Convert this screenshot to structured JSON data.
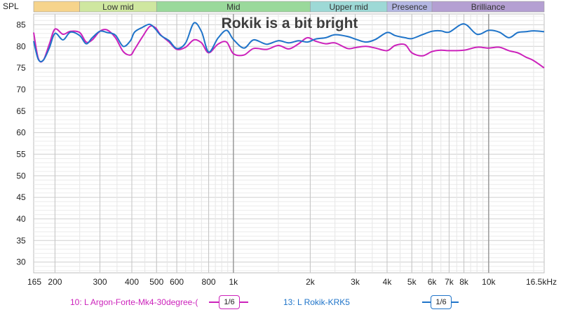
{
  "chart_data": {
    "type": "line",
    "title": "Rokik is a bit bright",
    "ylabel": "SPL",
    "x_scale": "log",
    "xlim": [
      165,
      16500
    ],
    "ylim": [
      27.5,
      87.5
    ],
    "x_ticks": [
      {
        "v": 165,
        "label": "165"
      },
      {
        "v": 200,
        "label": "200"
      },
      {
        "v": 300,
        "label": "300"
      },
      {
        "v": 400,
        "label": "400"
      },
      {
        "v": 500,
        "label": "500"
      },
      {
        "v": 600,
        "label": "600"
      },
      {
        "v": 800,
        "label": "800"
      },
      {
        "v": 1000,
        "label": "1k"
      },
      {
        "v": 2000,
        "label": "2k"
      },
      {
        "v": 3000,
        "label": "3k"
      },
      {
        "v": 4000,
        "label": "4k"
      },
      {
        "v": 5000,
        "label": "5k"
      },
      {
        "v": 6000,
        "label": "6k"
      },
      {
        "v": 7000,
        "label": "7k"
      },
      {
        "v": 8000,
        "label": "8k"
      },
      {
        "v": 10000,
        "label": "10k"
      },
      {
        "v": 16500,
        "label": "16.5kHz"
      }
    ],
    "y_ticks": [
      30,
      35,
      40,
      45,
      50,
      55,
      60,
      65,
      70,
      75,
      80,
      85
    ],
    "bands": [
      {
        "label": "",
        "from": 165,
        "to": 250,
        "color": "#f6d48c"
      },
      {
        "label": "Low mid",
        "from": 250,
        "to": 500,
        "color": "#cfe7a0"
      },
      {
        "label": "Mid",
        "from": 500,
        "to": 2000,
        "color": "#9ad99b"
      },
      {
        "label": "Upper mid",
        "from": 2000,
        "to": 4000,
        "color": "#9dd9d6"
      },
      {
        "label": "Presence",
        "from": 4000,
        "to": 6000,
        "color": "#b3b6e2"
      },
      {
        "label": "Brilliance",
        "from": 6000,
        "to": 16500,
        "color": "#b49fd2"
      }
    ],
    "series": [
      {
        "name": "10: L Argon-Forte-Mk4-30degree-(",
        "color": "#cc22bb",
        "smoothing": "1/6",
        "x": [
          165,
          172,
          180,
          190,
          200,
          215,
          230,
          250,
          265,
          280,
          300,
          320,
          345,
          370,
          395,
          410,
          440,
          470,
          495,
          520,
          560,
          600,
          650,
          700,
          750,
          800,
          870,
          940,
          1000,
          1100,
          1200,
          1350,
          1500,
          1650,
          1800,
          1950,
          2100,
          2300,
          2500,
          2800,
          3000,
          3300,
          3600,
          4000,
          4300,
          4700,
          5000,
          5500,
          6000,
          6500,
          7000,
          8000,
          9000,
          10000,
          11000,
          12000,
          13000,
          14000,
          15000,
          16500
        ],
        "y": [
          83.2,
          77.2,
          76.8,
          80.5,
          84.0,
          82.8,
          83.5,
          83.2,
          81.0,
          81.5,
          83.5,
          83.8,
          82.0,
          78.8,
          78.0,
          79.3,
          82.2,
          84.6,
          84.3,
          82.6,
          81.0,
          79.3,
          79.8,
          81.5,
          80.8,
          78.5,
          80.5,
          81.0,
          78.3,
          78.0,
          79.5,
          79.3,
          80.2,
          79.4,
          80.6,
          82.0,
          81.2,
          80.6,
          80.8,
          79.5,
          79.7,
          80.0,
          79.6,
          79.0,
          80.2,
          80.4,
          78.5,
          77.8,
          78.8,
          79.1,
          79.0,
          79.1,
          79.8,
          79.6,
          79.8,
          79.0,
          78.5,
          77.5,
          76.7,
          75.0
        ]
      },
      {
        "name": "13: L Rokik-KRK5",
        "color": "#1f74c9",
        "smoothing": "1/6",
        "x": [
          165,
          172,
          180,
          190,
          200,
          215,
          230,
          250,
          265,
          280,
          300,
          320,
          345,
          370,
          395,
          410,
          440,
          470,
          495,
          520,
          560,
          600,
          650,
          700,
          750,
          800,
          870,
          940,
          1000,
          1100,
          1200,
          1350,
          1500,
          1650,
          1800,
          1950,
          2100,
          2300,
          2500,
          2800,
          3000,
          3300,
          3600,
          4000,
          4300,
          4700,
          5000,
          5500,
          6000,
          6500,
          7000,
          8000,
          9000,
          10000,
          11000,
          12000,
          13000,
          14000,
          15000,
          16500
        ],
        "y": [
          81.2,
          77.0,
          76.8,
          79.6,
          83.0,
          81.5,
          83.3,
          82.5,
          80.6,
          82.0,
          83.5,
          83.2,
          82.6,
          80.0,
          81.3,
          83.3,
          84.4,
          85.1,
          84.0,
          82.5,
          81.3,
          79.5,
          80.8,
          85.4,
          83.4,
          78.7,
          81.9,
          83.7,
          81.6,
          79.6,
          81.5,
          80.5,
          81.3,
          80.8,
          81.3,
          81.0,
          81.7,
          82.0,
          82.7,
          82.3,
          81.7,
          81.0,
          81.6,
          83.2,
          82.5,
          82.0,
          81.8,
          82.7,
          83.5,
          83.6,
          83.3,
          85.2,
          82.8,
          83.7,
          83.3,
          82.0,
          83.2,
          83.4,
          83.6,
          83.4
        ]
      }
    ]
  }
}
